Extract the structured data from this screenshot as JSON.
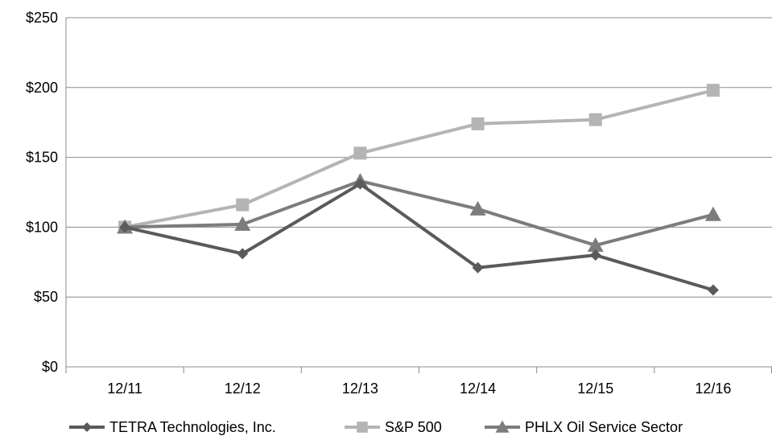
{
  "chart_data": {
    "type": "line",
    "title": "",
    "xlabel": "",
    "ylabel": "",
    "categories": [
      "12/11",
      "12/12",
      "12/13",
      "12/14",
      "12/15",
      "12/16"
    ],
    "ylim": [
      0,
      250
    ],
    "y_ticks": [
      0,
      50,
      100,
      150,
      200,
      250
    ],
    "y_tick_labels": [
      "$0",
      "$50",
      "$100",
      "$150",
      "$200",
      "$250"
    ],
    "grid": "horizontal",
    "legend_position": "bottom",
    "series": [
      {
        "name": "TETRA Technologies, Inc.",
        "values": [
          100,
          81,
          131,
          71,
          80,
          55
        ],
        "color": "#5a5a5a",
        "marker": "diamond"
      },
      {
        "name": "S&P 500",
        "values": [
          100,
          116,
          153,
          174,
          177,
          198
        ],
        "color": "#b4b4b4",
        "marker": "square"
      },
      {
        "name": "PHLX Oil Service Sector",
        "values": [
          100,
          102,
          133,
          113,
          87,
          109
        ],
        "color": "#7c7c7c",
        "marker": "triangle"
      }
    ]
  }
}
